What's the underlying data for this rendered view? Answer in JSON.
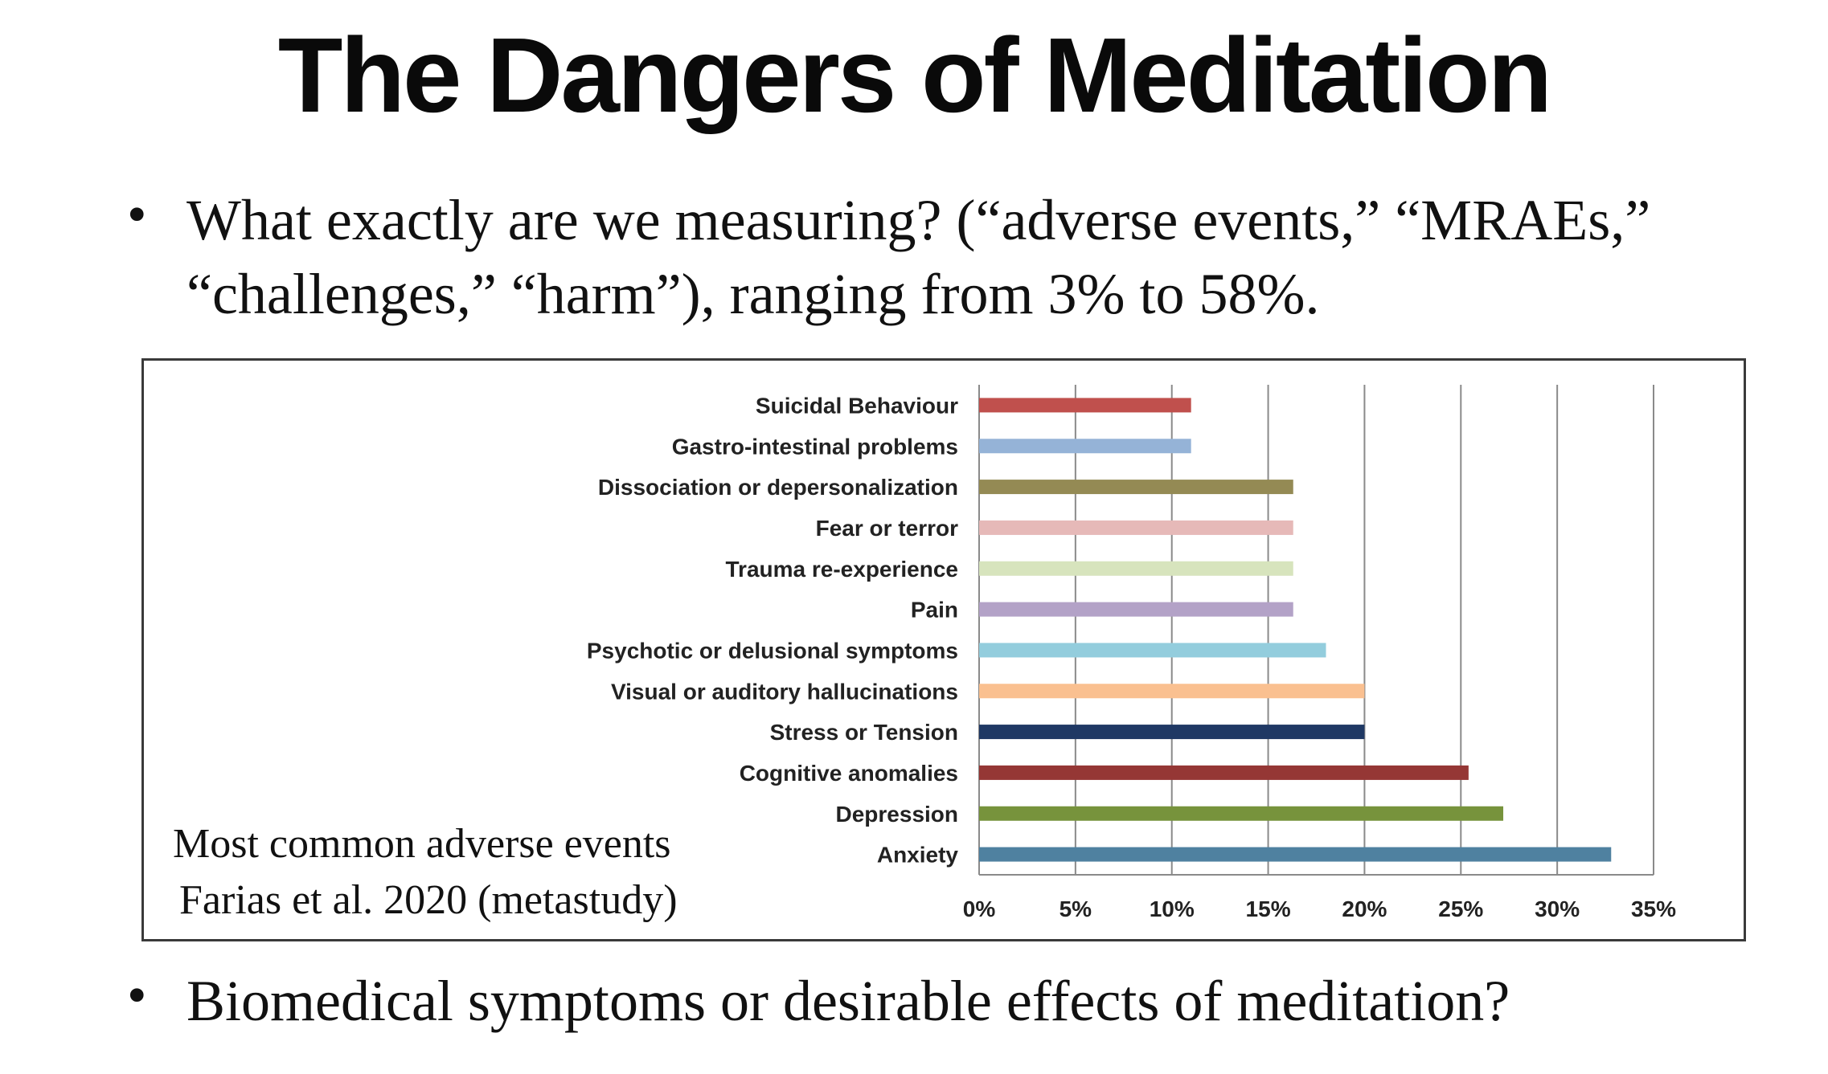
{
  "slide": {
    "title": "The Dangers of Meditation",
    "bullet1": "What exactly are we measuring? (“adverse events,” “MRAEs,” “challenges,” “harm”), ranging from 3% to 58%.",
    "bullet2": "Biomedical symptoms or desirable effects of meditation?",
    "bullet_glyph": "•",
    "caption_line1": "Most common adverse events",
    "caption_line2": "Farias et al. 2020 (metastudy)"
  },
  "chart_data": {
    "type": "bar",
    "orientation": "horizontal",
    "title": "",
    "xlabel": "",
    "ylabel": "",
    "categories": [
      "Suicidal Behaviour",
      "Gastro-intestinal problems",
      "Dissociation or depersonalization",
      "Fear or terror",
      "Trauma re-experience",
      "Pain",
      "Psychotic or delusional symptoms",
      "Visual or auditory hallucinations",
      "Stress or Tension",
      "Cognitive anomalies",
      "Depression",
      "Anxiety"
    ],
    "values": [
      11,
      11,
      16.3,
      16.3,
      16.3,
      16.3,
      18,
      20,
      20,
      25.4,
      27.2,
      32.8
    ],
    "colors": [
      "#c0504d",
      "#95b3d7",
      "#948a54",
      "#e6b9b8",
      "#d7e4bd",
      "#b3a2c7",
      "#93cddd",
      "#fac090",
      "#1f3864",
      "#953735",
      "#77933c",
      "#4f81a0"
    ],
    "xlim": [
      0,
      35
    ],
    "xticks": [
      "0%",
      "5%",
      "10%",
      "15%",
      "20%",
      "25%",
      "30%",
      "35%"
    ],
    "grid": "vertical",
    "legend": "none"
  }
}
